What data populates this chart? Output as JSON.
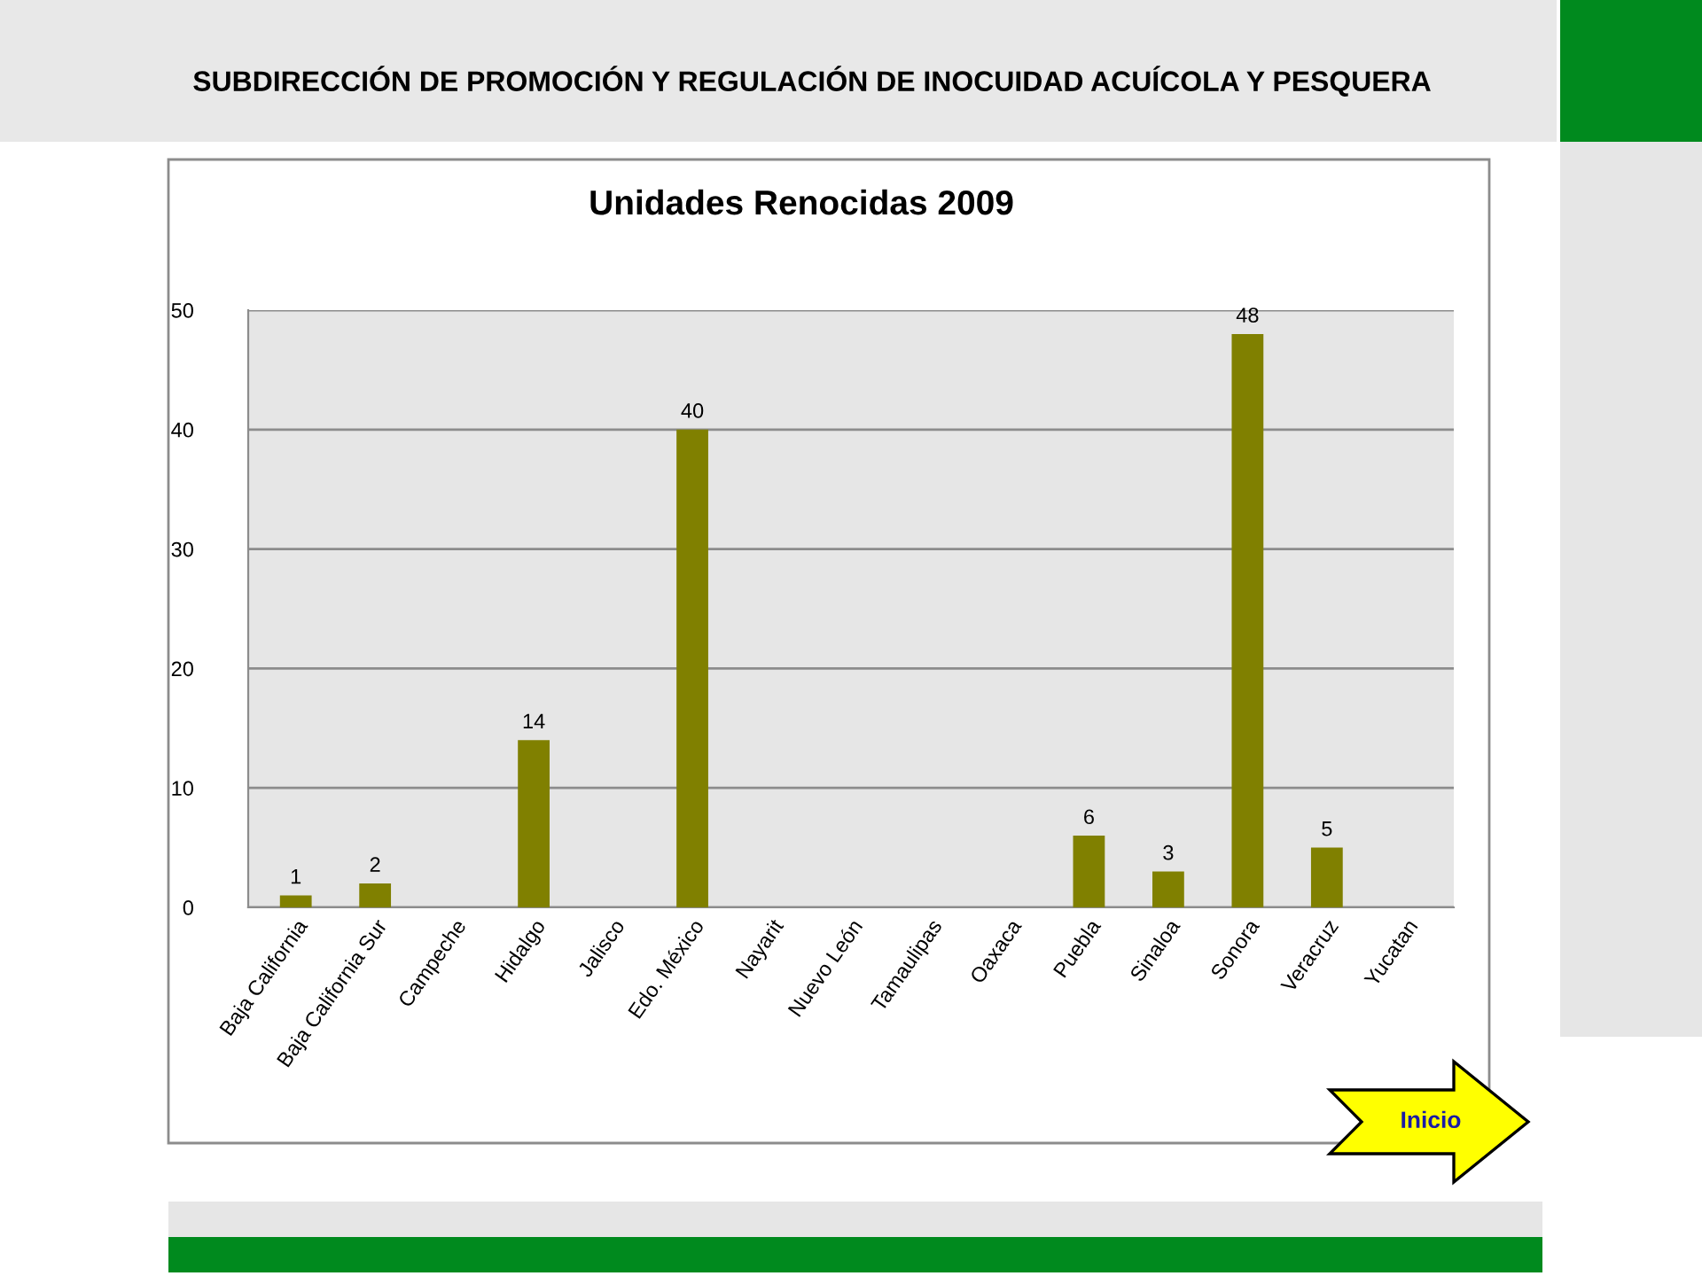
{
  "chart_data": {
    "type": "bar",
    "title": "Unidades Renocidas 2009",
    "categories": [
      "Baja California",
      "Baja California Sur",
      "Campeche",
      "Hidalgo",
      "Jalisco",
      "Edo. México",
      "Nayarit",
      "Nuevo León",
      "Tamaulipas",
      "Oaxaca",
      "Puebla",
      "Sinaloa",
      "Sonora",
      "Veracruz",
      "Yucatan"
    ],
    "values": [
      1,
      2,
      0,
      14,
      0,
      40,
      0,
      0,
      0,
      0,
      6,
      3,
      48,
      5,
      0
    ],
    "value_labels": [
      "1",
      "2",
      null,
      "14",
      null,
      "40",
      null,
      null,
      null,
      null,
      "6",
      "3",
      "48",
      "5",
      null
    ],
    "color": "#808000",
    "ylim": [
      0,
      50
    ],
    "yticks": [
      0,
      10,
      20,
      30,
      40,
      50
    ],
    "grid": "y",
    "legend": false,
    "annotations": [
      "SUBDIRECCIÓN DE PROMOCIÓN Y REGULACIÓN DE INOCUIDAD ACUÍCOLA Y PESQUERA",
      "Inicio"
    ]
  }
}
